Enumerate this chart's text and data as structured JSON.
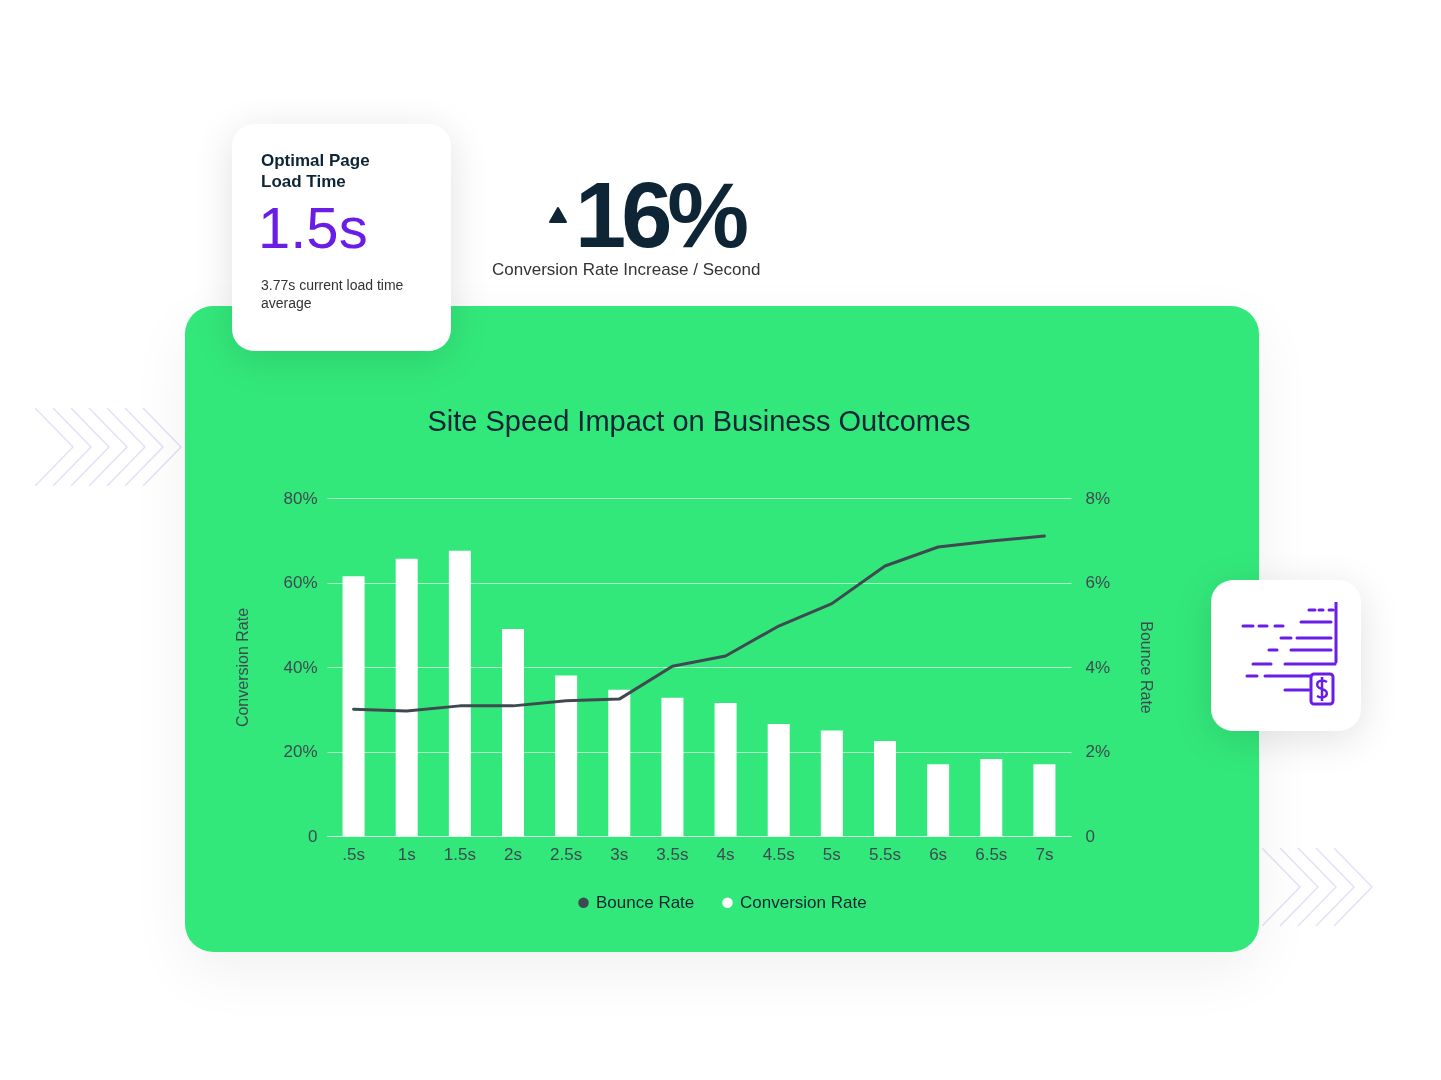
{
  "chart_data": {
    "type": "bar",
    "title": "Site Speed Impact on Business Outcomes",
    "ylabel": "Conversion Rate",
    "y2label": "Bounce Rate",
    "categories": [
      ".5s",
      "1s",
      "1.5s",
      "2s",
      "2.5s",
      "3s",
      "3.5s",
      "4s",
      "4.5s",
      "5s",
      "5.5s",
      "6s",
      "6.5s",
      "7s"
    ],
    "series": [
      {
        "name": "Bounce Rate",
        "type": "line",
        "axis": "y2",
        "color": "#3f4a50",
        "values": [
          3.0,
          2.96,
          3.08,
          3.08,
          3.2,
          3.24,
          4.02,
          4.26,
          4.97,
          5.5,
          6.39,
          6.84,
          6.98,
          7.1
        ]
      },
      {
        "name": "Conversion Rate",
        "color": "#ffffff",
        "values": [
          61.5,
          65.6,
          67.5,
          49,
          38,
          34.6,
          32.7,
          31.5,
          26.5,
          25,
          22.5,
          17,
          18.2,
          17
        ]
      }
    ],
    "ylim": [
      0,
      80
    ],
    "yticks": [
      0,
      {
        "value": 20,
        "label": "20%"
      },
      {
        "value": 40,
        "label": "40%"
      },
      {
        "value": 60,
        "label": "60%"
      },
      {
        "value": 80,
        "label": "80%"
      }
    ],
    "y2lim": [
      0,
      8
    ],
    "y2ticks": [
      0,
      {
        "value": 2,
        "label": "2%"
      },
      {
        "value": 4,
        "label": "4%"
      },
      {
        "value": 6,
        "label": "6%"
      },
      {
        "value": 8,
        "label": "8%"
      }
    ],
    "grid": "y",
    "legend": "bottom",
    "annotations": [
      "Optimal Page Load Time",
      "1.5s",
      "3.77s current load time average",
      "16%",
      "Conversion Rate Increase / Second"
    ]
  }
}
